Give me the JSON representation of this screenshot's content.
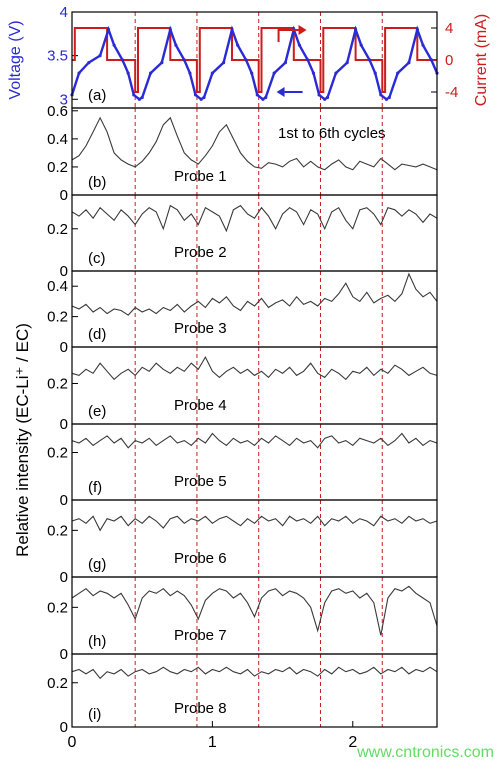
{
  "watermark": "www.cntronics.com",
  "colors": {
    "voltage": "#2b2bd6",
    "current": "#cc1c1c",
    "trace": "#3a3a3a",
    "divider": "#cc1c1c",
    "axis": "#000000"
  },
  "chart_data": [
    {
      "type": "line",
      "panel": "(a)",
      "ylabel": "Voltage (V)",
      "ylabel_right": "Current (mA)",
      "yticks": [
        "3",
        "3.5",
        "4"
      ],
      "yticks_right": [
        "4",
        "0",
        "-4"
      ],
      "ylim": [
        2.9,
        4.0
      ],
      "ylim_right": [
        -6,
        6
      ],
      "series": [
        {
          "name": "Voltage (V)",
          "x": [
            0.0,
            0.05,
            0.12,
            0.2,
            0.26,
            0.3,
            0.36,
            0.4,
            0.44,
            0.48,
            0.5,
            0.56,
            0.64,
            0.7,
            0.74,
            0.8,
            0.84,
            0.88,
            0.92,
            0.94,
            1.0,
            1.08,
            1.14,
            1.18,
            1.24,
            1.28,
            1.32,
            1.36,
            1.38,
            1.44,
            1.52,
            1.58,
            1.62,
            1.68,
            1.72,
            1.76,
            1.8,
            1.82,
            1.88,
            1.96,
            2.02,
            2.06,
            2.12,
            2.16,
            2.2,
            2.24,
            2.26,
            2.32,
            2.4,
            2.46,
            2.5,
            2.56,
            2.6
          ],
          "values": [
            3.05,
            3.3,
            3.42,
            3.5,
            3.8,
            3.62,
            3.45,
            3.3,
            3.05,
            3.0,
            3.02,
            3.3,
            3.42,
            3.8,
            3.62,
            3.45,
            3.3,
            3.05,
            3.0,
            3.02,
            3.3,
            3.42,
            3.8,
            3.62,
            3.45,
            3.3,
            3.05,
            3.0,
            3.02,
            3.3,
            3.42,
            3.8,
            3.62,
            3.45,
            3.3,
            3.05,
            3.0,
            3.02,
            3.3,
            3.42,
            3.8,
            3.62,
            3.45,
            3.3,
            3.05,
            3.0,
            3.02,
            3.3,
            3.42,
            3.8,
            3.62,
            3.45,
            3.3
          ]
        },
        {
          "name": "Current (mA)",
          "x": [
            0.0,
            0.02,
            0.02,
            0.25,
            0.25,
            0.45,
            0.45,
            0.47,
            0.47,
            0.7,
            0.7,
            0.89,
            0.89,
            0.91,
            0.91,
            1.14,
            1.14,
            1.33,
            1.33,
            1.35,
            1.35,
            1.58,
            1.58,
            1.77,
            1.77,
            1.79,
            1.79,
            2.02,
            2.02,
            2.21,
            2.21,
            2.23,
            2.23,
            2.46,
            2.46,
            2.6
          ],
          "values": [
            0,
            0,
            4,
            4,
            0,
            0,
            -4,
            -4,
            4,
            4,
            0,
            0,
            -4,
            -4,
            4,
            4,
            0,
            0,
            -4,
            -4,
            4,
            4,
            0,
            0,
            -4,
            -4,
            4,
            4,
            0,
            0,
            -4,
            -4,
            4,
            4,
            0,
            0
          ]
        }
      ]
    },
    {
      "type": "line",
      "panel": "(b)",
      "probe": "Probe 1",
      "annotation": "1st to 6th cycles",
      "yticks": [
        "0",
        "0.2",
        "0.4",
        "0.6"
      ],
      "ylim": [
        0,
        0.62
      ],
      "x": [
        0,
        0.05,
        0.1,
        0.15,
        0.2,
        0.25,
        0.3,
        0.35,
        0.4,
        0.45,
        0.5,
        0.55,
        0.6,
        0.65,
        0.7,
        0.75,
        0.8,
        0.85,
        0.9,
        0.95,
        1.0,
        1.05,
        1.1,
        1.15,
        1.2,
        1.25,
        1.3,
        1.35,
        1.4,
        1.45,
        1.5,
        1.55,
        1.6,
        1.65,
        1.7,
        1.75,
        1.8,
        1.85,
        1.9,
        1.95,
        2.0,
        2.05,
        2.1,
        2.15,
        2.2,
        2.25,
        2.3,
        2.35,
        2.4,
        2.45,
        2.5,
        2.55,
        2.6
      ],
      "values": [
        0.25,
        0.28,
        0.35,
        0.45,
        0.55,
        0.45,
        0.3,
        0.25,
        0.22,
        0.2,
        0.24,
        0.3,
        0.38,
        0.5,
        0.55,
        0.42,
        0.3,
        0.25,
        0.22,
        0.28,
        0.35,
        0.45,
        0.5,
        0.4,
        0.3,
        0.24,
        0.2,
        0.19,
        0.23,
        0.22,
        0.2,
        0.24,
        0.26,
        0.2,
        0.24,
        0.2,
        0.18,
        0.22,
        0.25,
        0.2,
        0.18,
        0.24,
        0.22,
        0.2,
        0.26,
        0.22,
        0.18,
        0.22,
        0.21,
        0.2,
        0.22,
        0.2,
        0.18
      ]
    },
    {
      "type": "line",
      "panel": "(c)",
      "probe": "Probe 2",
      "yticks": [
        "0",
        "0.2"
      ],
      "ylim": [
        0,
        0.36
      ],
      "x": [
        0,
        0.05,
        0.1,
        0.15,
        0.2,
        0.25,
        0.3,
        0.35,
        0.4,
        0.45,
        0.5,
        0.55,
        0.6,
        0.65,
        0.7,
        0.75,
        0.8,
        0.85,
        0.9,
        0.95,
        1.0,
        1.05,
        1.1,
        1.15,
        1.2,
        1.25,
        1.3,
        1.35,
        1.4,
        1.45,
        1.5,
        1.55,
        1.6,
        1.65,
        1.7,
        1.75,
        1.8,
        1.85,
        1.9,
        1.95,
        2.0,
        2.05,
        2.1,
        2.15,
        2.2,
        2.25,
        2.3,
        2.35,
        2.4,
        2.45,
        2.5,
        2.55,
        2.6
      ],
      "values": [
        0.28,
        0.26,
        0.29,
        0.25,
        0.3,
        0.27,
        0.24,
        0.29,
        0.26,
        0.22,
        0.27,
        0.3,
        0.28,
        0.2,
        0.31,
        0.29,
        0.24,
        0.27,
        0.22,
        0.3,
        0.28,
        0.26,
        0.19,
        0.29,
        0.31,
        0.27,
        0.25,
        0.3,
        0.26,
        0.2,
        0.27,
        0.3,
        0.28,
        0.22,
        0.29,
        0.27,
        0.2,
        0.28,
        0.3,
        0.24,
        0.2,
        0.29,
        0.3,
        0.27,
        0.22,
        0.3,
        0.29,
        0.26,
        0.29,
        0.27,
        0.23,
        0.27,
        0.25
      ]
    },
    {
      "type": "line",
      "panel": "(d)",
      "probe": "Probe 3",
      "yticks": [
        "0",
        "0.2",
        "0.4"
      ],
      "ylim": [
        0,
        0.5
      ],
      "x": [
        0,
        0.05,
        0.1,
        0.15,
        0.2,
        0.25,
        0.3,
        0.35,
        0.4,
        0.45,
        0.5,
        0.55,
        0.6,
        0.65,
        0.7,
        0.75,
        0.8,
        0.85,
        0.9,
        0.95,
        1.0,
        1.05,
        1.1,
        1.15,
        1.2,
        1.25,
        1.3,
        1.35,
        1.4,
        1.45,
        1.5,
        1.55,
        1.6,
        1.65,
        1.7,
        1.75,
        1.8,
        1.85,
        1.9,
        1.95,
        2.0,
        2.05,
        2.1,
        2.15,
        2.2,
        2.25,
        2.3,
        2.35,
        2.4,
        2.45,
        2.5,
        2.55,
        2.6
      ],
      "values": [
        0.27,
        0.25,
        0.28,
        0.23,
        0.26,
        0.22,
        0.25,
        0.24,
        0.21,
        0.26,
        0.23,
        0.25,
        0.22,
        0.26,
        0.24,
        0.28,
        0.23,
        0.27,
        0.3,
        0.26,
        0.32,
        0.29,
        0.33,
        0.27,
        0.24,
        0.3,
        0.27,
        0.32,
        0.26,
        0.29,
        0.31,
        0.27,
        0.33,
        0.28,
        0.3,
        0.27,
        0.32,
        0.3,
        0.35,
        0.42,
        0.33,
        0.3,
        0.36,
        0.29,
        0.32,
        0.34,
        0.3,
        0.35,
        0.48,
        0.38,
        0.33,
        0.36,
        0.3
      ]
    },
    {
      "type": "line",
      "panel": "(e)",
      "probe": "Probe 4",
      "yticks": [
        "0",
        "0.2"
      ],
      "ylim": [
        0,
        0.38
      ],
      "x": [
        0,
        0.05,
        0.1,
        0.15,
        0.2,
        0.25,
        0.3,
        0.35,
        0.4,
        0.45,
        0.5,
        0.55,
        0.6,
        0.65,
        0.7,
        0.75,
        0.8,
        0.85,
        0.9,
        0.95,
        1.0,
        1.05,
        1.1,
        1.15,
        1.2,
        1.25,
        1.3,
        1.35,
        1.4,
        1.45,
        1.5,
        1.55,
        1.6,
        1.65,
        1.7,
        1.75,
        1.8,
        1.85,
        1.9,
        1.95,
        2.0,
        2.05,
        2.1,
        2.15,
        2.2,
        2.25,
        2.3,
        2.35,
        2.4,
        2.45,
        2.5,
        2.55,
        2.6
      ],
      "values": [
        0.25,
        0.24,
        0.27,
        0.25,
        0.3,
        0.26,
        0.22,
        0.25,
        0.27,
        0.24,
        0.28,
        0.26,
        0.3,
        0.27,
        0.25,
        0.28,
        0.26,
        0.3,
        0.27,
        0.33,
        0.26,
        0.23,
        0.26,
        0.28,
        0.25,
        0.27,
        0.24,
        0.26,
        0.23,
        0.27,
        0.25,
        0.28,
        0.24,
        0.26,
        0.3,
        0.25,
        0.23,
        0.27,
        0.25,
        0.22,
        0.26,
        0.25,
        0.28,
        0.24,
        0.27,
        0.25,
        0.29,
        0.27,
        0.24,
        0.26,
        0.28,
        0.25,
        0.24
      ]
    },
    {
      "type": "line",
      "panel": "(f)",
      "probe": "Probe 5",
      "yticks": [
        "0",
        "0.2"
      ],
      "ylim": [
        0,
        0.32
      ],
      "x": [
        0,
        0.05,
        0.1,
        0.15,
        0.2,
        0.25,
        0.3,
        0.35,
        0.4,
        0.45,
        0.5,
        0.55,
        0.6,
        0.65,
        0.7,
        0.75,
        0.8,
        0.85,
        0.9,
        0.95,
        1.0,
        1.05,
        1.1,
        1.15,
        1.2,
        1.25,
        1.3,
        1.35,
        1.4,
        1.45,
        1.5,
        1.55,
        1.6,
        1.65,
        1.7,
        1.75,
        1.8,
        1.85,
        1.9,
        1.95,
        2.0,
        2.05,
        2.1,
        2.15,
        2.2,
        2.25,
        2.3,
        2.35,
        2.4,
        2.45,
        2.5,
        2.55,
        2.6
      ],
      "values": [
        0.25,
        0.24,
        0.26,
        0.23,
        0.25,
        0.27,
        0.24,
        0.26,
        0.22,
        0.25,
        0.24,
        0.26,
        0.23,
        0.25,
        0.27,
        0.24,
        0.25,
        0.23,
        0.26,
        0.24,
        0.28,
        0.25,
        0.23,
        0.26,
        0.24,
        0.25,
        0.23,
        0.26,
        0.24,
        0.27,
        0.25,
        0.23,
        0.26,
        0.24,
        0.25,
        0.22,
        0.26,
        0.27,
        0.24,
        0.25,
        0.23,
        0.26,
        0.25,
        0.24,
        0.26,
        0.23,
        0.25,
        0.28,
        0.24,
        0.26,
        0.23,
        0.25,
        0.24
      ]
    },
    {
      "type": "line",
      "panel": "(g)",
      "probe": "Probe 6",
      "yticks": [
        "0",
        "0.2"
      ],
      "ylim": [
        0,
        0.33
      ],
      "x": [
        0,
        0.05,
        0.1,
        0.15,
        0.2,
        0.25,
        0.3,
        0.35,
        0.4,
        0.45,
        0.5,
        0.55,
        0.6,
        0.65,
        0.7,
        0.75,
        0.8,
        0.85,
        0.9,
        0.95,
        1.0,
        1.05,
        1.1,
        1.15,
        1.2,
        1.25,
        1.3,
        1.35,
        1.4,
        1.45,
        1.5,
        1.55,
        1.6,
        1.65,
        1.7,
        1.75,
        1.8,
        1.85,
        1.9,
        1.95,
        2.0,
        2.05,
        2.1,
        2.15,
        2.2,
        2.25,
        2.3,
        2.35,
        2.4,
        2.45,
        2.5,
        2.55,
        2.6
      ],
      "values": [
        0.24,
        0.25,
        0.23,
        0.26,
        0.2,
        0.25,
        0.24,
        0.26,
        0.22,
        0.25,
        0.23,
        0.26,
        0.24,
        0.21,
        0.25,
        0.26,
        0.23,
        0.25,
        0.24,
        0.26,
        0.23,
        0.25,
        0.26,
        0.24,
        0.22,
        0.25,
        0.23,
        0.26,
        0.24,
        0.25,
        0.22,
        0.26,
        0.24,
        0.25,
        0.23,
        0.26,
        0.22,
        0.25,
        0.24,
        0.26,
        0.23,
        0.25,
        0.24,
        0.22,
        0.26,
        0.24,
        0.25,
        0.23,
        0.26,
        0.24,
        0.25,
        0.23,
        0.24
      ]
    },
    {
      "type": "line",
      "panel": "(h)",
      "probe": "Probe 7",
      "yticks": [
        "0",
        "0.2"
      ],
      "ylim": [
        0,
        0.33
      ],
      "x": [
        0,
        0.05,
        0.1,
        0.15,
        0.2,
        0.25,
        0.3,
        0.35,
        0.4,
        0.45,
        0.5,
        0.55,
        0.6,
        0.65,
        0.7,
        0.75,
        0.8,
        0.85,
        0.9,
        0.95,
        1.0,
        1.05,
        1.1,
        1.15,
        1.2,
        1.25,
        1.3,
        1.35,
        1.4,
        1.45,
        1.5,
        1.55,
        1.6,
        1.65,
        1.7,
        1.75,
        1.8,
        1.85,
        1.9,
        1.95,
        2.0,
        2.05,
        2.1,
        2.15,
        2.2,
        2.25,
        2.3,
        2.35,
        2.4,
        2.45,
        2.5,
        2.55,
        2.6
      ],
      "values": [
        0.24,
        0.26,
        0.28,
        0.25,
        0.27,
        0.26,
        0.24,
        0.26,
        0.21,
        0.15,
        0.24,
        0.27,
        0.26,
        0.28,
        0.25,
        0.27,
        0.25,
        0.21,
        0.15,
        0.23,
        0.26,
        0.28,
        0.27,
        0.24,
        0.26,
        0.22,
        0.16,
        0.24,
        0.27,
        0.28,
        0.25,
        0.27,
        0.26,
        0.24,
        0.2,
        0.1,
        0.22,
        0.27,
        0.28,
        0.26,
        0.27,
        0.24,
        0.26,
        0.22,
        0.08,
        0.24,
        0.28,
        0.27,
        0.29,
        0.26,
        0.24,
        0.22,
        0.12
      ]
    },
    {
      "type": "line",
      "panel": "(i)",
      "probe": "Probe 8",
      "yticks": [
        "0",
        "0.2"
      ],
      "ylim": [
        0,
        0.33
      ],
      "x": [
        0,
        0.05,
        0.1,
        0.15,
        0.2,
        0.25,
        0.3,
        0.35,
        0.4,
        0.45,
        0.5,
        0.55,
        0.6,
        0.65,
        0.7,
        0.75,
        0.8,
        0.85,
        0.9,
        0.95,
        1.0,
        1.05,
        1.1,
        1.15,
        1.2,
        1.25,
        1.3,
        1.35,
        1.4,
        1.45,
        1.5,
        1.55,
        1.6,
        1.65,
        1.7,
        1.75,
        1.8,
        1.85,
        1.9,
        1.95,
        2.0,
        2.05,
        2.1,
        2.15,
        2.2,
        2.25,
        2.3,
        2.35,
        2.4,
        2.45,
        2.5,
        2.55,
        2.6
      ],
      "values": [
        0.25,
        0.26,
        0.24,
        0.26,
        0.22,
        0.25,
        0.24,
        0.26,
        0.23,
        0.25,
        0.26,
        0.24,
        0.25,
        0.27,
        0.25,
        0.24,
        0.26,
        0.25,
        0.27,
        0.24,
        0.26,
        0.25,
        0.27,
        0.25,
        0.24,
        0.26,
        0.23,
        0.25,
        0.24,
        0.26,
        0.25,
        0.27,
        0.24,
        0.26,
        0.25,
        0.23,
        0.26,
        0.24,
        0.27,
        0.25,
        0.26,
        0.24,
        0.25,
        0.27,
        0.24,
        0.26,
        0.25,
        0.27,
        0.24,
        0.26,
        0.25,
        0.27,
        0.25
      ]
    }
  ],
  "shared": {
    "xticks": [
      "0",
      "1",
      "2"
    ],
    "xlim": [
      0,
      2.6
    ],
    "cycle_dividers": [
      0.45,
      0.89,
      1.33,
      1.77,
      2.21
    ],
    "ylabel": "Relative intensity (EC-Li⁺ / EC)"
  }
}
